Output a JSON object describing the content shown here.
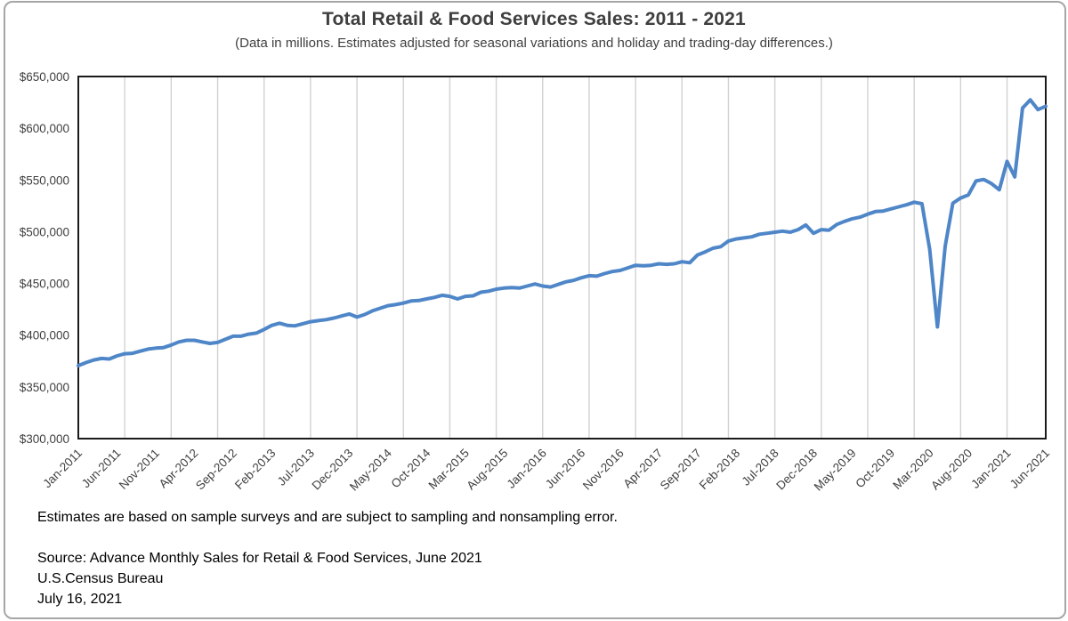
{
  "title": "Total Retail & Food Services Sales: 2011 - 2021",
  "subtitle": "(Data in millions. Estimates adjusted for seasonal variations and holiday and trading-day differences.)",
  "footnotes": {
    "sampling": "Estimates are based on sample surveys and are subject to sampling and nonsampling error.",
    "source_line1": "Source: Advance Monthly Sales for Retail & Food Services, June 2021",
    "source_line2": "U.S.Census Bureau",
    "source_line3": "July 16, 2021"
  },
  "colors": {
    "line": "#4e86c8",
    "gridline": "#d2d2d2",
    "plot_border": "#1a1a1a",
    "axis_text": "#404040"
  },
  "chart_data": {
    "type": "line",
    "title": "Total Retail & Food Services Sales: 2011 - 2021",
    "subtitle": "(Data in millions. Estimates adjusted for seasonal variations and holiday and trading-day differences.)",
    "x_start": "Jan-2011",
    "x_end": "Jun-2021",
    "frequency": "monthly",
    "x_tick_labels": [
      "Jan-2011",
      "Jun-2011",
      "Nov-2011",
      "Apr-2012",
      "Sep-2012",
      "Feb-2013",
      "Jul-2013",
      "Dec-2013",
      "May-2014",
      "Oct-2014",
      "Mar-2015",
      "Aug-2015",
      "Jan-2016",
      "Jun-2016",
      "Nov-2016",
      "Apr-2017",
      "Sep-2017",
      "Feb-2018",
      "Jul-2018",
      "Dec-2018",
      "May-2019",
      "Oct-2019",
      "Mar-2020",
      "Aug-2020",
      "Jan-2021",
      "Jun-2021"
    ],
    "x_label_interval_months": 5,
    "gridline_interval_months": 6,
    "grid": "vertical-only",
    "legend": "none",
    "y_axis": {
      "min": 300000,
      "max": 650000,
      "step": 50000,
      "format": "$#,##0"
    },
    "series": [
      {
        "name": "Total Retail & Food Services Sales ($ millions, seasonally adjusted)",
        "values": [
          370500,
          373500,
          376000,
          377500,
          377000,
          380000,
          382000,
          382500,
          384500,
          386500,
          387500,
          388000,
          390500,
          393500,
          395000,
          395000,
          393500,
          392000,
          393000,
          396000,
          399000,
          399000,
          401000,
          402000,
          405500,
          409500,
          411500,
          409500,
          409000,
          411000,
          413000,
          414000,
          415000,
          416500,
          418500,
          420500,
          417500,
          420000,
          423500,
          426000,
          428500,
          429500,
          431000,
          433000,
          433500,
          435000,
          436500,
          438500,
          437500,
          435000,
          437500,
          438000,
          441500,
          442500,
          444500,
          445500,
          446000,
          445500,
          447500,
          449500,
          447500,
          446500,
          449000,
          451500,
          453000,
          455500,
          457500,
          457000,
          459500,
          461500,
          462500,
          465000,
          467500,
          467000,
          467500,
          469000,
          468500,
          469000,
          471000,
          470000,
          477500,
          480500,
          484000,
          485500,
          491000,
          493000,
          494000,
          495000,
          497500,
          498500,
          499500,
          500500,
          499500,
          502000,
          506500,
          498500,
          502000,
          501500,
          507000,
          510000,
          512500,
          514000,
          517000,
          519500,
          520000,
          522000,
          524000,
          526000,
          528500,
          527000,
          483000,
          408000,
          486000,
          527500,
          532500,
          535500,
          549000,
          550500,
          546500,
          540500,
          568000,
          553000,
          619500,
          627500,
          618000,
          621300
        ]
      }
    ]
  }
}
